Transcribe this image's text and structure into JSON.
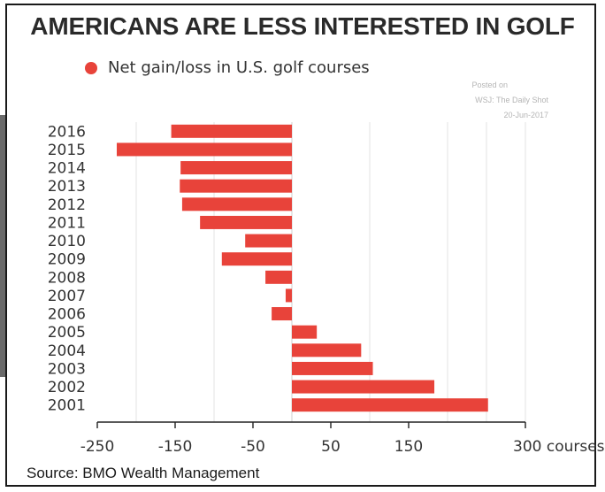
{
  "title": "AMERICANS ARE LESS INTERESTED IN GOLF",
  "legend": {
    "label": "Net gain/loss in U.S. golf courses",
    "color": "#e8433a"
  },
  "watermark": {
    "line1": "Posted on",
    "line2": "WSJ: The Daily Shot",
    "line3": "20-Jun-2017"
  },
  "source": "Source: BMO Wealth Management",
  "chart_data": {
    "type": "bar",
    "orientation": "horizontal",
    "categories": [
      "2016",
      "2015",
      "2014",
      "2013",
      "2012",
      "2011",
      "2010",
      "2009",
      "2008",
      "2007",
      "2006",
      "2005",
      "2004",
      "2003",
      "2002",
      "2001"
    ],
    "series": [
      {
        "name": "Net gain/loss in U.S. golf courses",
        "values": [
          -155,
          -225,
          -143,
          -144,
          -141,
          -118,
          -60,
          -90,
          -34,
          -8,
          -26,
          32,
          89,
          104,
          183,
          252
        ],
        "color": "#e8433a"
      }
    ],
    "xlim": [
      -250,
      300
    ],
    "xticks": [
      -250,
      -150,
      -50,
      50,
      150,
      300
    ],
    "xtick_labels": [
      "-250",
      "-150",
      "-50",
      "50",
      "150",
      "300 courses"
    ],
    "gridlines": [
      -200,
      -100,
      0,
      100,
      200,
      250,
      300
    ],
    "grid": true
  }
}
